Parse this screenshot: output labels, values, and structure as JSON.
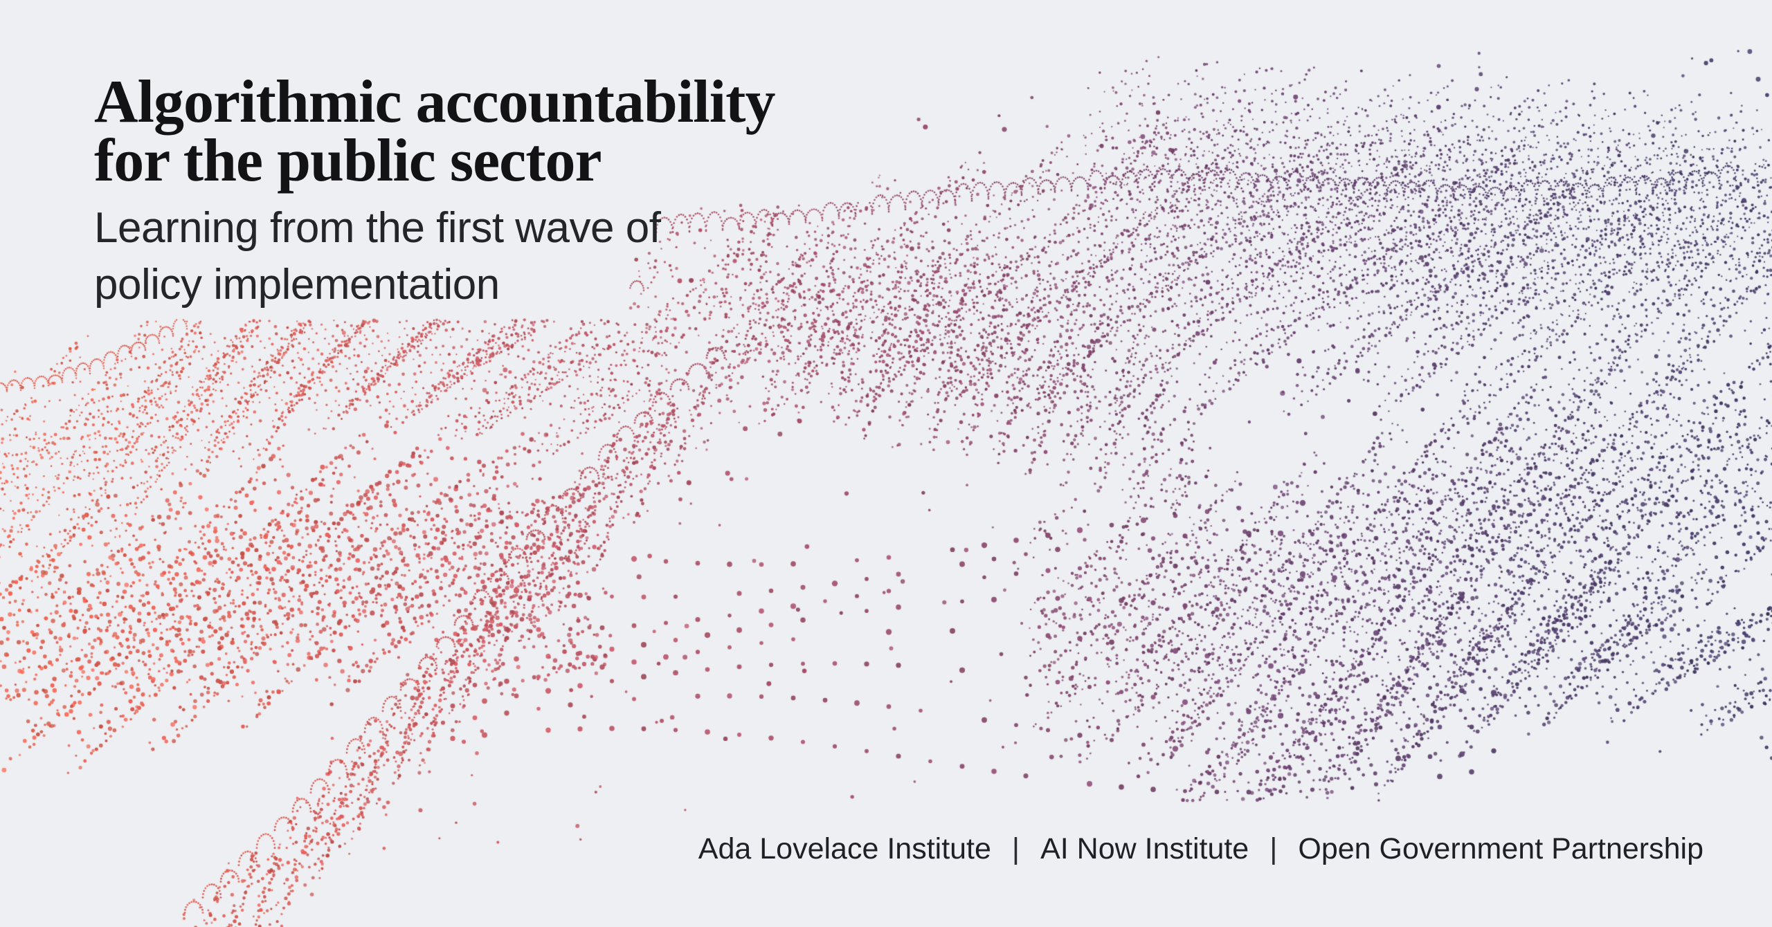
{
  "page": {
    "background_color": "#edeff2"
  },
  "cover": {
    "title": {
      "line1": "Algorithmic accountability",
      "line2": "for the public sector",
      "color": "#131316"
    },
    "subtitle": {
      "line1": "Learning from the first wave of",
      "line2": "policy implementation",
      "color": "#232529"
    },
    "footer": {
      "orgs": [
        "Ada Lovelace Institute",
        "AI Now Institute",
        "Open Government Partnership"
      ],
      "separator": "|",
      "color": "#1e2025"
    }
  },
  "artwork": {
    "type": "particle-wave",
    "gradient": [
      "#e8614f",
      "#de5a51",
      "#c5545f",
      "#a84e68",
      "#8d486e",
      "#6e4270",
      "#523e6c",
      "#443a68"
    ]
  }
}
